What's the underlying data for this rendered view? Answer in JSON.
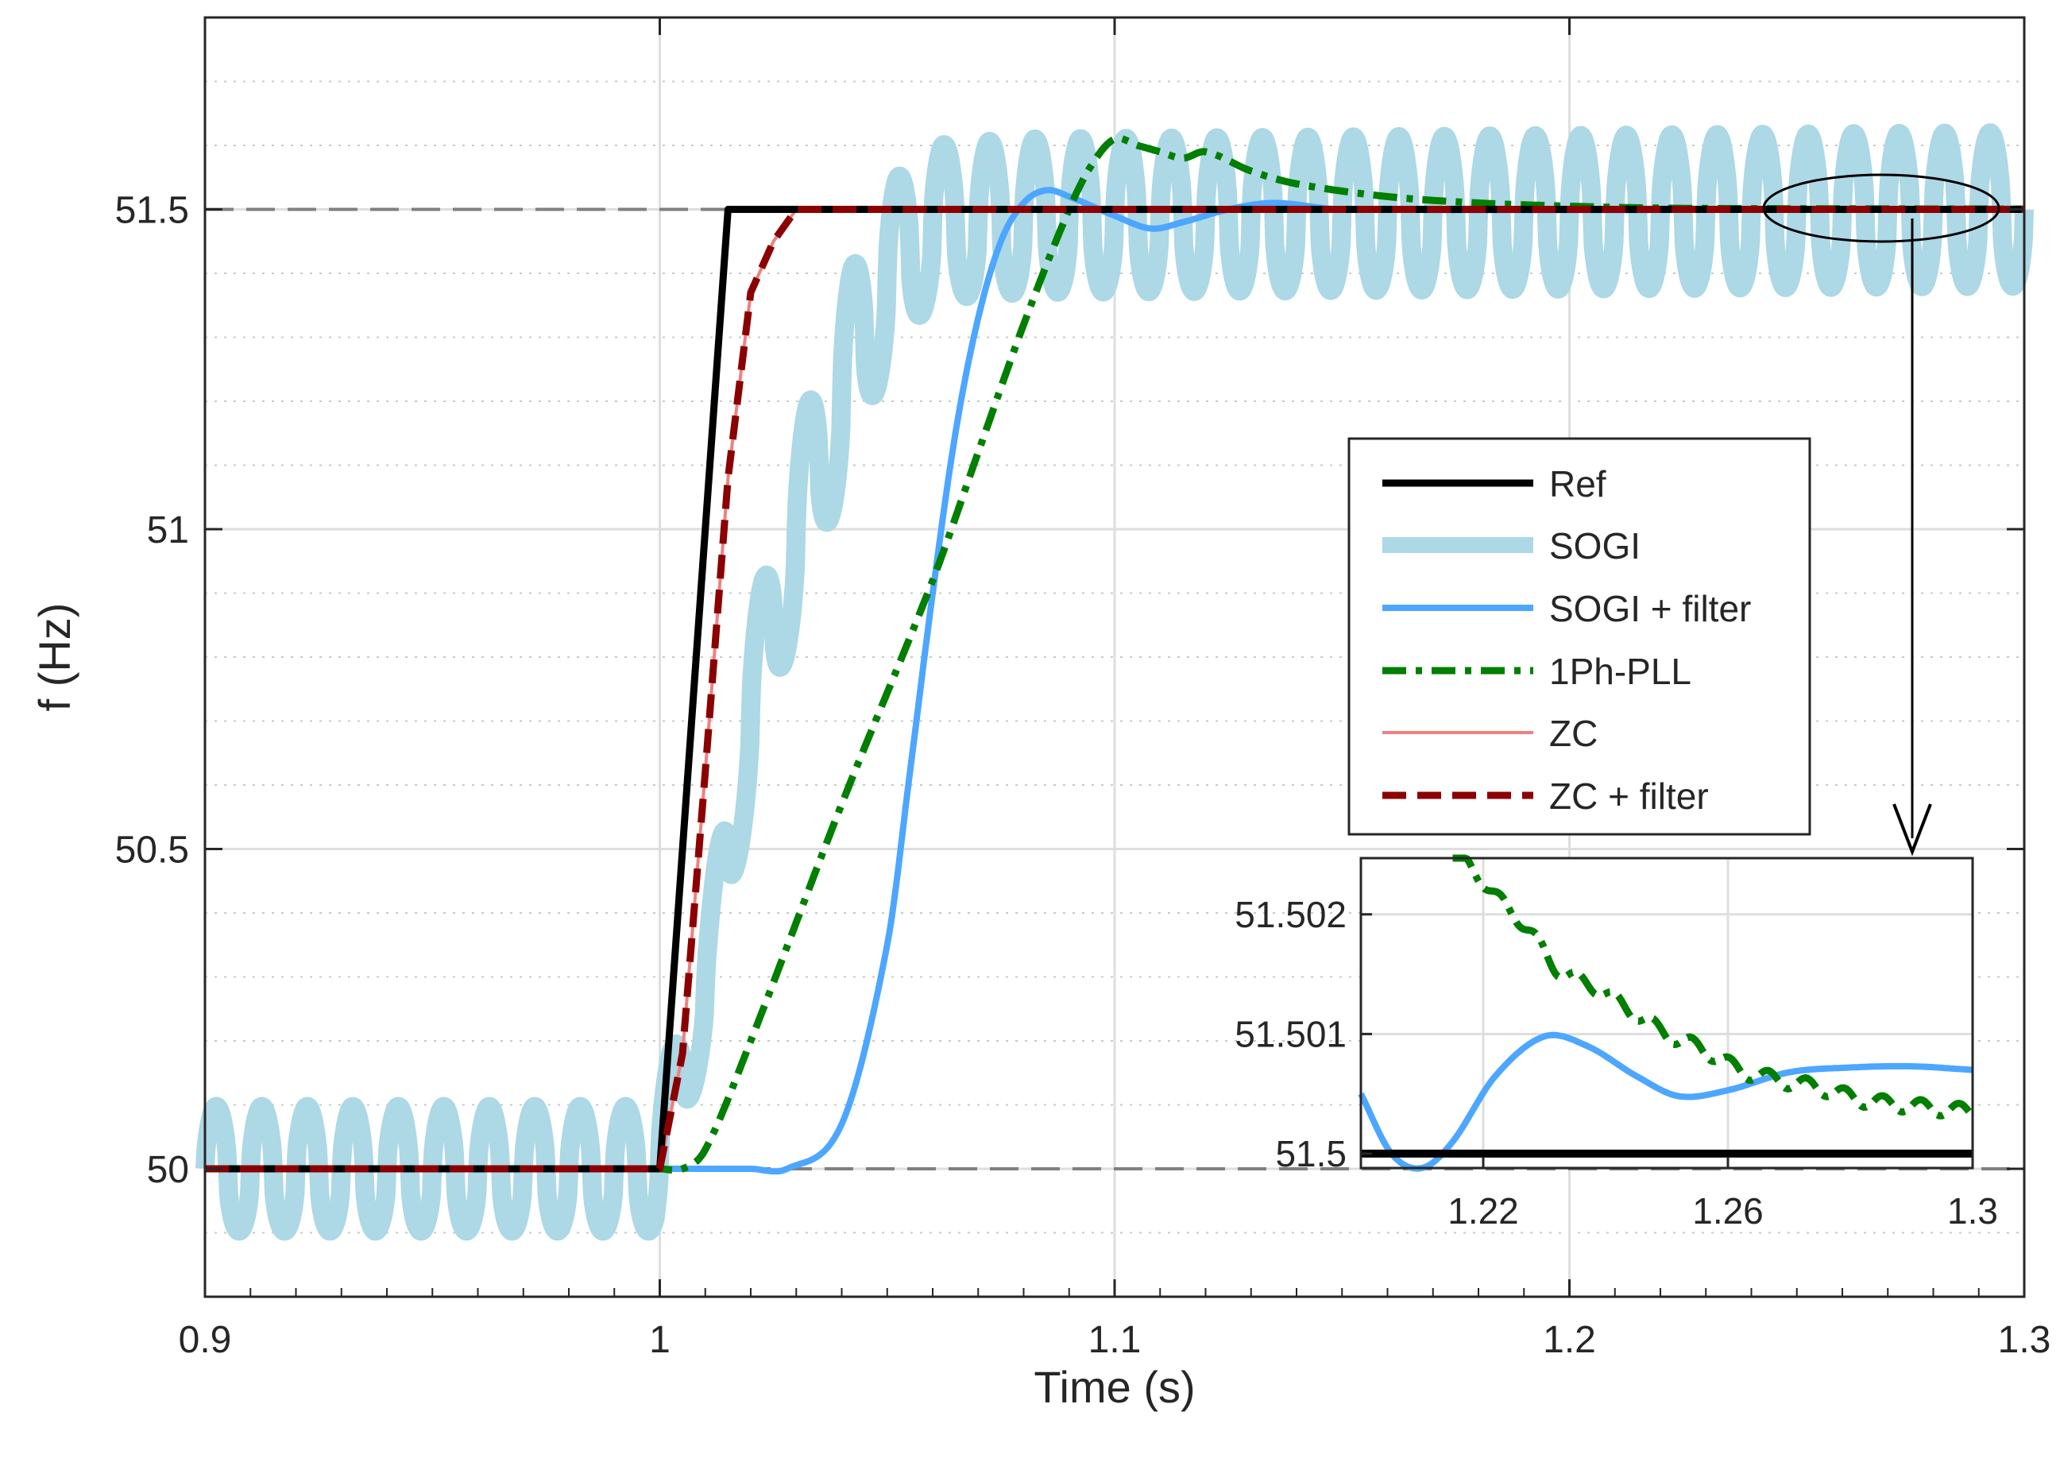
{
  "chart_data": {
    "type": "line",
    "title": "",
    "xlabel": "Time (s)",
    "ylabel": "f (Hz)",
    "xlim": [
      0.9,
      1.3
    ],
    "ylim": [
      49.8,
      51.8
    ],
    "xticks": [
      0.9,
      1,
      1.1,
      1.2,
      1.3
    ],
    "xtick_labels": [
      "0.9",
      "1",
      "1.1",
      "1.2",
      "1.3"
    ],
    "yticks": [
      50,
      50.5,
      51,
      51.5
    ],
    "ytick_labels": [
      "50",
      "50.5",
      "51",
      "51.5"
    ],
    "grid": "major solid, minor dotted",
    "reference_lines": [
      50,
      51.5
    ],
    "legend": {
      "placement": "right",
      "entries": [
        "Ref",
        "SOGI",
        "SOGI + filter",
        "1Ph-PLL",
        "ZC",
        "ZC + filter"
      ]
    },
    "series": [
      {
        "name": "Ref",
        "color": "#000000",
        "style": "solid",
        "x": [
          0.9,
          1.0,
          1.015,
          1.3
        ],
        "y": [
          50.0,
          50.0,
          51.5,
          51.5
        ]
      },
      {
        "name": "SOGI",
        "color": "#add8e6",
        "style": "solid-thick",
        "oscillating": true,
        "x": [
          0.9,
          0.999,
          1.01,
          1.02,
          1.03,
          1.04,
          1.05,
          1.06,
          1.08,
          1.3
        ],
        "mean": [
          50.0,
          50.0,
          50.28,
          50.72,
          51.0,
          51.22,
          51.4,
          51.48,
          51.49,
          51.5
        ],
        "amplitude": [
          0.13,
          0.13,
          0.11,
          0.16,
          0.18,
          0.2,
          0.18,
          0.16,
          0.16,
          0.16
        ]
      },
      {
        "name": "SOGI + filter",
        "color": "#4da6ff",
        "style": "solid",
        "x": [
          0.9,
          1.0,
          1.02,
          1.028,
          1.04,
          1.05,
          1.055,
          1.06,
          1.065,
          1.07,
          1.075,
          1.08,
          1.085,
          1.09,
          1.1,
          1.108,
          1.115,
          1.125,
          1.135,
          1.15,
          1.3
        ],
        "y": [
          50.0,
          50.0,
          50.0,
          50.0,
          50.07,
          50.35,
          50.62,
          50.9,
          51.15,
          51.33,
          51.45,
          51.51,
          51.53,
          51.52,
          51.49,
          51.47,
          51.48,
          51.5,
          51.51,
          51.5,
          51.501
        ]
      },
      {
        "name": "1Ph-PLL",
        "color": "#007f00",
        "style": "dash-dot",
        "x": [
          0.9,
          1.0,
          1.005,
          1.01,
          1.02,
          1.04,
          1.06,
          1.07,
          1.08,
          1.09,
          1.095,
          1.1,
          1.105,
          1.11,
          1.115,
          1.12,
          1.13,
          1.14,
          1.16,
          1.18,
          1.2,
          1.22,
          1.25,
          1.3
        ],
        "y": [
          50.0,
          50.0,
          50.0,
          50.03,
          50.2,
          50.57,
          50.92,
          51.12,
          51.32,
          51.5,
          51.57,
          51.61,
          51.6,
          51.59,
          51.58,
          51.59,
          51.56,
          51.54,
          51.52,
          51.51,
          51.505,
          51.502,
          51.501,
          51.5005
        ]
      },
      {
        "name": "ZC",
        "color": "#f08080",
        "style": "solid-thin",
        "x": [
          0.9,
          1.0,
          1.005,
          1.01,
          1.015,
          1.02,
          1.025,
          1.03,
          1.3
        ],
        "y": [
          50.0,
          50.0,
          50.18,
          50.62,
          51.08,
          51.37,
          51.45,
          51.5,
          51.5
        ]
      },
      {
        "name": "ZC + filter",
        "color": "#8b0000",
        "style": "dashed",
        "x": [
          0.9,
          1.0,
          1.005,
          1.01,
          1.015,
          1.02,
          1.025,
          1.03,
          1.3
        ],
        "y": [
          50.0,
          50.0,
          50.18,
          50.62,
          51.08,
          51.37,
          51.45,
          51.5,
          51.5
        ]
      }
    ],
    "inset": {
      "description": "zoom",
      "xlim": [
        1.2,
        1.3
      ],
      "ylim": [
        51.49988,
        51.50247
      ],
      "xticks": [
        1.22,
        1.26,
        1.3
      ],
      "xtick_labels": [
        "1.22",
        "1.26",
        "1.3"
      ],
      "yticks": [
        51.5,
        51.501,
        51.502
      ],
      "ytick_labels": [
        "51.5",
        "51.501",
        "51.502"
      ],
      "series": [
        {
          "name": "Ref",
          "x": [
            1.2,
            1.3
          ],
          "y": [
            51.5,
            51.5
          ]
        },
        {
          "name": "SOGI + filter",
          "x": [
            1.2,
            1.205,
            1.21,
            1.215,
            1.222,
            1.23,
            1.237,
            1.245,
            1.252,
            1.26,
            1.27,
            1.28,
            1.29,
            1.3
          ],
          "y": [
            51.5005,
            51.5,
            51.49988,
            51.5001,
            51.50065,
            51.50098,
            51.5009,
            51.50065,
            51.50048,
            51.50053,
            51.50068,
            51.50072,
            51.50073,
            51.5007
          ]
        },
        {
          "name": "1Ph-PLL",
          "x": [
            1.215,
            1.218,
            1.222,
            1.227,
            1.232,
            1.238,
            1.244,
            1.25,
            1.256,
            1.262,
            1.268,
            1.275,
            1.282,
            1.29,
            1.3
          ],
          "y": [
            51.50247,
            51.5024,
            51.50215,
            51.5019,
            51.50155,
            51.5014,
            51.5012,
            51.501,
            51.50087,
            51.5007,
            51.50062,
            51.50055,
            51.50045,
            51.5004,
            51.50035
          ]
        }
      ]
    }
  }
}
